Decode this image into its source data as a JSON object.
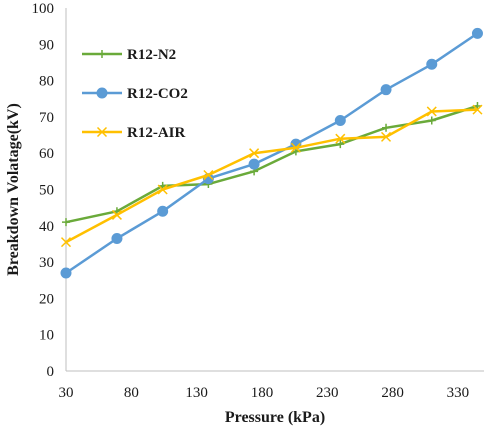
{
  "chart_data": {
    "type": "line",
    "title": "",
    "xlabel": "Pressure (kPa)",
    "ylabel": "Breakdown Volatage(kV)",
    "xlim": [
      30,
      350
    ],
    "ylim": [
      0,
      100
    ],
    "x_ticks": [
      "30",
      "80",
      "130",
      "180",
      "230",
      "280",
      "330"
    ],
    "y_ticks": [
      "0",
      "10",
      "20",
      "30",
      "40",
      "50",
      "60",
      "70",
      "80",
      "90",
      "100"
    ],
    "grid": false,
    "legend_position": "top-left",
    "series": [
      {
        "name": "R12-N2",
        "color": "#6aaa3a",
        "marker": "plus",
        "x": [
          30,
          69,
          104,
          139,
          174,
          206,
          240,
          275,
          310,
          345
        ],
        "y": [
          41,
          44,
          51,
          51.5,
          55,
          60.5,
          62.5,
          67,
          69,
          73
        ]
      },
      {
        "name": "R12-CO2",
        "color": "#5b9bd5",
        "marker": "circle",
        "x": [
          30,
          69,
          104,
          139,
          174,
          206,
          240,
          275,
          310,
          345
        ],
        "y": [
          27,
          36.5,
          44,
          53,
          57,
          62.5,
          69,
          77.5,
          84.5,
          93
        ]
      },
      {
        "name": "R12-AIR",
        "color": "#ffc000",
        "marker": "x",
        "x": [
          30,
          69,
          104,
          139,
          174,
          206,
          240,
          275,
          310,
          345
        ],
        "y": [
          35.5,
          43,
          50,
          54,
          60,
          61.5,
          64,
          64.5,
          71.5,
          72
        ]
      }
    ]
  }
}
